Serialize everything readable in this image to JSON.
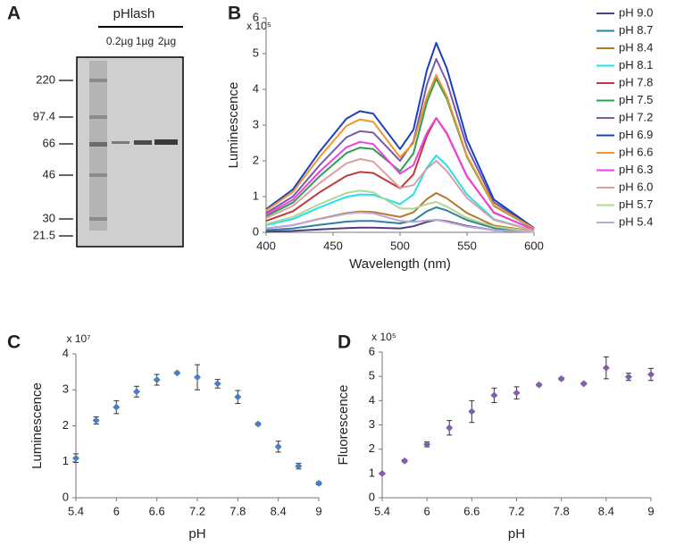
{
  "gel": {
    "panel": "A",
    "title": "pHlash",
    "lanes": [
      "0.2µg",
      "1µg",
      "2µg"
    ],
    "markers": [
      "220",
      "97.4",
      "66",
      "46",
      "30",
      "21.5"
    ]
  },
  "chart_data": [
    {
      "type": "line",
      "panel": "B",
      "multiplier": "x 10⁵",
      "y_label": "Luminescence",
      "x_label": "Wavelength (nm)",
      "xlim": [
        400,
        600
      ],
      "xticks": [
        400,
        450,
        500,
        550,
        600
      ],
      "ylim": [
        0,
        6
      ],
      "yticks": [
        0,
        1,
        2,
        3,
        4,
        5,
        6
      ],
      "x": [
        400,
        420,
        440,
        460,
        470,
        480,
        500,
        510,
        520,
        527,
        535,
        550,
        570,
        600
      ],
      "series": [
        {
          "name": "pH 9.0",
          "color": "#4f3f7f",
          "values": [
            0.02,
            0.04,
            0.08,
            0.12,
            0.13,
            0.13,
            0.11,
            0.17,
            0.29,
            0.35,
            0.31,
            0.18,
            0.06,
            0.01
          ]
        },
        {
          "name": "pH 8.7",
          "color": "#2f7fa0",
          "values": [
            0.06,
            0.11,
            0.21,
            0.3,
            0.32,
            0.32,
            0.25,
            0.33,
            0.59,
            0.7,
            0.61,
            0.34,
            0.12,
            0.01
          ]
        },
        {
          "name": "pH 8.4",
          "color": "#b8742a",
          "values": [
            0.11,
            0.2,
            0.38,
            0.54,
            0.58,
            0.57,
            0.43,
            0.56,
            0.93,
            1.1,
            0.95,
            0.54,
            0.19,
            0.03
          ]
        },
        {
          "name": "pH 8.1",
          "color": "#22e0f0",
          "values": [
            0.2,
            0.37,
            0.7,
            0.99,
            1.06,
            1.05,
            0.79,
            1.06,
            1.81,
            2.15,
            1.87,
            1.06,
            0.37,
            0.05
          ]
        },
        {
          "name": "pH 7.8",
          "color": "#c0393b",
          "values": [
            0.32,
            0.59,
            1.12,
            1.58,
            1.69,
            1.66,
            1.23,
            1.62,
            2.7,
            3.2,
            2.77,
            1.57,
            0.55,
            0.08
          ]
        },
        {
          "name": "pH 7.5",
          "color": "#2aa050",
          "values": [
            0.45,
            0.83,
            1.57,
            2.22,
            2.37,
            2.33,
            1.71,
            2.21,
            3.64,
            4.3,
            3.73,
            2.11,
            0.74,
            0.1
          ]
        },
        {
          "name": "pH 7.2",
          "color": "#7a5aa8",
          "values": [
            0.54,
            1.0,
            1.88,
            2.66,
            2.83,
            2.79,
            2.0,
            2.54,
            4.13,
            4.85,
            4.2,
            2.38,
            0.84,
            0.12
          ]
        },
        {
          "name": "pH 6.9",
          "color": "#1a3fc0",
          "values": [
            0.65,
            1.2,
            2.26,
            3.18,
            3.39,
            3.32,
            2.33,
            2.87,
            4.53,
            5.3,
            4.58,
            2.59,
            0.92,
            0.12
          ]
        },
        {
          "name": "pH 6.6",
          "color": "#f0962f",
          "values": [
            0.61,
            1.13,
            2.11,
            2.98,
            3.16,
            3.09,
            2.1,
            2.49,
            3.79,
            4.4,
            3.8,
            2.14,
            0.76,
            0.11
          ]
        },
        {
          "name": "pH 6.3",
          "color": "#f040e0",
          "values": [
            0.49,
            0.91,
            1.7,
            2.38,
            2.53,
            2.47,
            1.64,
            1.88,
            2.78,
            3.2,
            2.75,
            1.56,
            0.56,
            0.07
          ]
        },
        {
          "name": "pH 6.0",
          "color": "#d8a0a0",
          "values": [
            0.4,
            0.74,
            1.38,
            1.93,
            2.05,
            1.98,
            1.24,
            1.32,
            1.78,
            2.0,
            1.71,
            0.96,
            0.35,
            0.05
          ]
        },
        {
          "name": "pH 5.7",
          "color": "#b0d890",
          "values": [
            0.23,
            0.43,
            0.79,
            1.1,
            1.17,
            1.12,
            0.67,
            0.66,
            0.79,
            0.85,
            0.72,
            0.4,
            0.16,
            0.02
          ]
        },
        {
          "name": "pH 5.4",
          "color": "#b8a8d8",
          "values": [
            0.11,
            0.2,
            0.37,
            0.52,
            0.56,
            0.53,
            0.32,
            0.29,
            0.33,
            0.35,
            0.29,
            0.16,
            0.06,
            0.01
          ]
        }
      ]
    },
    {
      "type": "scatter",
      "panel": "C",
      "multiplier": "x 10⁷",
      "y_label": "Luminescence",
      "x_label": "pH",
      "color": "#4a7fc0",
      "xlim": [
        5.4,
        9
      ],
      "xticks": [
        5.4,
        6,
        6.6,
        7.2,
        7.8,
        8.4,
        9
      ],
      "ylim": [
        0,
        4
      ],
      "yticks": [
        0,
        1,
        2,
        3,
        4
      ],
      "x": [
        5.4,
        5.7,
        6,
        6.3,
        6.6,
        6.9,
        7.2,
        7.5,
        7.8,
        8.1,
        8.4,
        8.7,
        9
      ],
      "values": [
        1.1,
        2.15,
        2.52,
        2.95,
        3.28,
        3.47,
        3.35,
        3.17,
        2.8,
        2.05,
        1.42,
        0.88,
        0.4
      ],
      "errors": [
        0.12,
        0.1,
        0.18,
        0.15,
        0.15,
        0.03,
        0.35,
        0.12,
        0.18,
        0.03,
        0.15,
        0.08,
        0.04
      ]
    },
    {
      "type": "scatter",
      "panel": "D",
      "multiplier": "x 10⁵",
      "y_label": "Fluorescence",
      "x_label": "pH",
      "color": "#8060a8",
      "xlim": [
        5.4,
        9
      ],
      "xticks": [
        5.4,
        6,
        6.6,
        7.2,
        7.8,
        8.4,
        9
      ],
      "ylim": [
        0,
        6
      ],
      "yticks": [
        0,
        1,
        2,
        3,
        4,
        5,
        6
      ],
      "x": [
        5.4,
        5.7,
        6,
        6.3,
        6.6,
        6.9,
        7.2,
        7.5,
        7.8,
        8.1,
        8.4,
        8.7,
        9
      ],
      "values": [
        1.0,
        1.52,
        2.2,
        2.88,
        3.55,
        4.22,
        4.32,
        4.65,
        4.9,
        4.7,
        5.35,
        4.98,
        5.08
      ],
      "errors": [
        0.03,
        0.05,
        0.1,
        0.3,
        0.45,
        0.3,
        0.25,
        0.05,
        0.05,
        0.05,
        0.45,
        0.15,
        0.25
      ]
    }
  ]
}
